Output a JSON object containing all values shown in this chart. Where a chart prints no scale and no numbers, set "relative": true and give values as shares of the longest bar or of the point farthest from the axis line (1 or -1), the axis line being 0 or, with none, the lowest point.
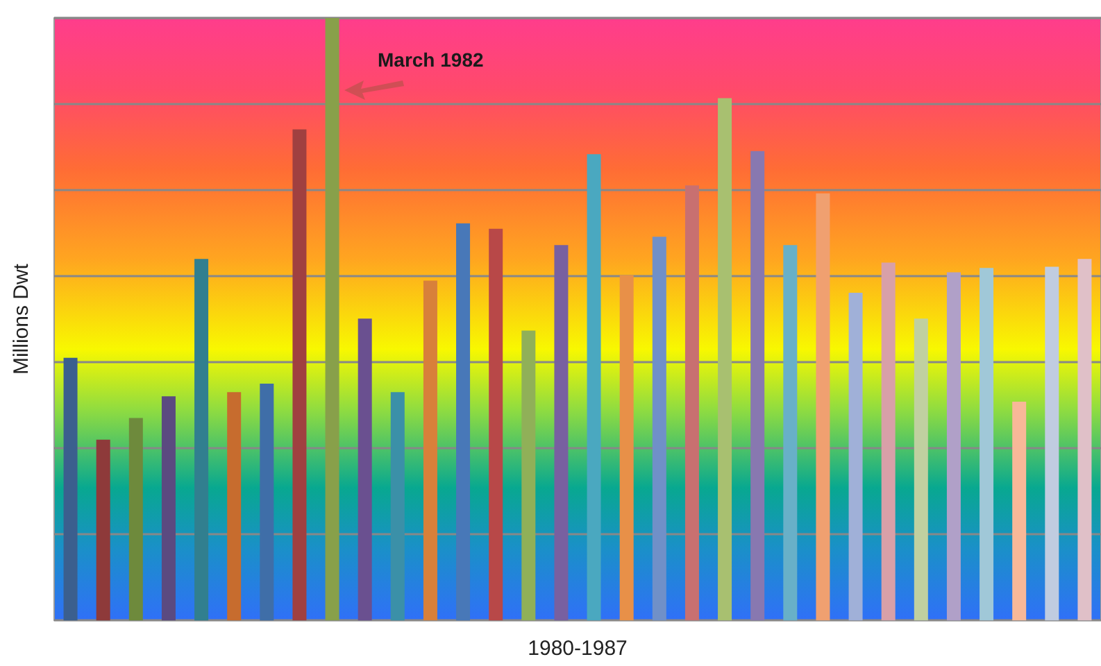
{
  "chart_data": {
    "type": "bar",
    "relative": true,
    "xlabel": "1980-1987",
    "ylabel": "Millions Dwt",
    "grid": "y",
    "categories": [
      null,
      null,
      null,
      null,
      null,
      null,
      null,
      null,
      null,
      null,
      null,
      null,
      null,
      null,
      null,
      null,
      null,
      null,
      null,
      null,
      null,
      null,
      null,
      null,
      null,
      null,
      null,
      null,
      null,
      null,
      null,
      null
    ],
    "values": [
      0.436,
      0.3,
      0.336,
      0.372,
      0.6,
      0.379,
      0.393,
      0.815,
      1,
      0.501,
      0.379,
      0.564,
      0.659,
      0.65,
      0.481,
      0.623,
      0.774,
      0.573,
      0.637,
      0.722,
      0.867,
      0.779,
      0.623,
      0.709,
      0.544,
      0.594,
      0.501,
      0.578,
      0.585,
      0.363,
      0.587,
      0.6
    ],
    "colors": [
      "#3b5f8e",
      "#8e3a3a",
      "#6e8a3c",
      "#5b4a80",
      "#317f8f",
      "#c76c2e",
      "#3f6ea8",
      "#a04040",
      "#88a04a",
      "#6a5090",
      "#3b90a8",
      "#d8803a",
      "#4878b8",
      "#b84848",
      "#90b058",
      "#7860a0",
      "#4aa8c0",
      "#e89048",
      "#7090c8",
      "#c87070",
      "#a8c070",
      "#8878b0",
      "#68b0c8",
      "#f0a070",
      "#a0b0d8",
      "#d8a0a8",
      "#c0d0a0",
      "#b0a0c8",
      "#a0c8d8",
      "#f8b898",
      "#c0cce0",
      "#e0c0c8"
    ],
    "annotations": [
      "March 1982"
    ]
  }
}
